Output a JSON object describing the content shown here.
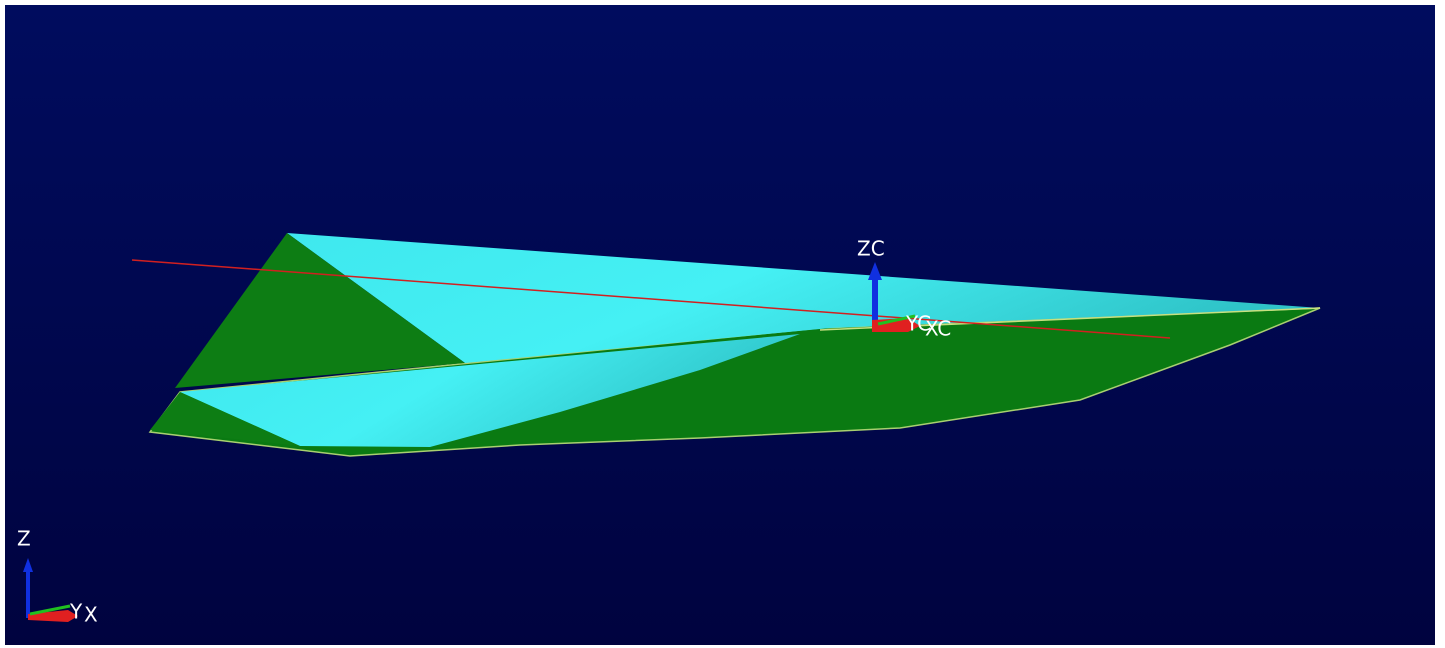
{
  "work_csys": {
    "z": "ZC",
    "y": "YC",
    "x": "XC"
  },
  "view_triad": {
    "z": "Z",
    "y": "Y",
    "x": "X"
  }
}
